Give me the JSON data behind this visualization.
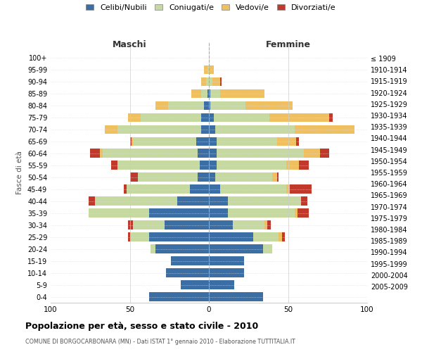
{
  "age_groups": [
    "0-4",
    "5-9",
    "10-14",
    "15-19",
    "20-24",
    "25-29",
    "30-34",
    "35-39",
    "40-44",
    "45-49",
    "50-54",
    "55-59",
    "60-64",
    "65-69",
    "70-74",
    "75-79",
    "80-84",
    "85-89",
    "90-94",
    "95-99",
    "100+"
  ],
  "birth_years": [
    "2005-2009",
    "2000-2004",
    "1995-1999",
    "1990-1994",
    "1985-1989",
    "1980-1984",
    "1975-1979",
    "1970-1974",
    "1965-1969",
    "1960-1964",
    "1955-1959",
    "1950-1954",
    "1945-1949",
    "1940-1944",
    "1935-1939",
    "1930-1934",
    "1925-1929",
    "1920-1924",
    "1915-1919",
    "1910-1914",
    "≤ 1909"
  ],
  "males": {
    "celibe": [
      38,
      18,
      27,
      24,
      34,
      38,
      28,
      38,
      20,
      12,
      7,
      6,
      7,
      8,
      5,
      5,
      3,
      1,
      0,
      0,
      0
    ],
    "coniugato": [
      0,
      0,
      0,
      0,
      3,
      12,
      20,
      38,
      52,
      40,
      38,
      52,
      60,
      40,
      53,
      38,
      23,
      4,
      2,
      1,
      0
    ],
    "vedovo": [
      0,
      0,
      0,
      0,
      0,
      0,
      0,
      0,
      0,
      0,
      0,
      0,
      2,
      1,
      8,
      8,
      8,
      6,
      3,
      2,
      0
    ],
    "divorziato": [
      0,
      0,
      0,
      0,
      0,
      1,
      3,
      0,
      4,
      2,
      5,
      4,
      6,
      1,
      0,
      0,
      0,
      0,
      0,
      0,
      0
    ]
  },
  "females": {
    "nubile": [
      34,
      16,
      22,
      22,
      34,
      28,
      15,
      12,
      12,
      7,
      4,
      5,
      5,
      5,
      4,
      3,
      1,
      1,
      0,
      0,
      0
    ],
    "coniugata": [
      0,
      0,
      0,
      0,
      6,
      16,
      20,
      42,
      46,
      42,
      36,
      44,
      55,
      38,
      50,
      35,
      22,
      6,
      2,
      0,
      0
    ],
    "vedova": [
      0,
      0,
      0,
      0,
      0,
      2,
      2,
      2,
      0,
      2,
      3,
      8,
      10,
      12,
      38,
      38,
      30,
      28,
      5,
      3,
      0
    ],
    "divorziata": [
      0,
      0,
      0,
      0,
      0,
      2,
      2,
      7,
      4,
      14,
      1,
      6,
      6,
      2,
      0,
      2,
      0,
      0,
      1,
      0,
      0
    ]
  },
  "colors": {
    "celibe": "#3a6ea5",
    "coniugato": "#c5d9a0",
    "vedovo": "#f0c060",
    "divorziato": "#c0392b"
  },
  "xlim": 100,
  "title": "Popolazione per età, sesso e stato civile - 2010",
  "subtitle": "COMUNE DI BORGOCARBONARA (MN) - Dati ISTAT 1° gennaio 2010 - Elaborazione TUTTITALIA.IT",
  "xlabel_left": "Maschi",
  "xlabel_right": "Femmine",
  "ylabel_left": "Fasce di età",
  "legend_labels": [
    "Celibi/Nubili",
    "Coniugati/e",
    "Vedovi/e",
    "Divorziati/e"
  ]
}
